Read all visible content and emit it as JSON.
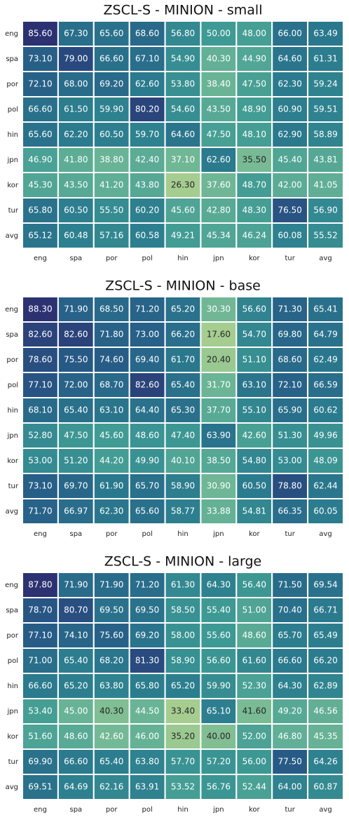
{
  "chart_data": [
    {
      "type": "heatmap",
      "title": "ZSCL-S - MINION - small",
      "xcategories": [
        "eng",
        "spa",
        "por",
        "pol",
        "hin",
        "jpn",
        "kor",
        "tur",
        "avg"
      ],
      "ycategories": [
        "eng",
        "spa",
        "por",
        "pol",
        "hin",
        "jpn",
        "kor",
        "tur",
        "avg"
      ],
      "colormap": [
        "#a5cd90",
        "#6bb596",
        "#3e9a94",
        "#2b7c8e",
        "#275d87",
        "#2c3172"
      ],
      "values": [
        [
          85.6,
          67.3,
          65.6,
          68.6,
          56.8,
          50.0,
          48.0,
          66.0,
          63.49
        ],
        [
          73.1,
          79.0,
          66.6,
          67.1,
          54.9,
          40.3,
          44.9,
          64.6,
          61.31
        ],
        [
          72.1,
          68.0,
          69.2,
          62.6,
          53.8,
          38.4,
          47.5,
          62.3,
          59.24
        ],
        [
          66.6,
          61.5,
          59.9,
          80.2,
          54.6,
          43.5,
          48.9,
          60.9,
          59.51
        ],
        [
          65.6,
          62.2,
          60.5,
          59.7,
          64.6,
          47.5,
          48.1,
          62.9,
          58.89
        ],
        [
          46.9,
          41.8,
          38.8,
          42.4,
          37.1,
          62.6,
          35.5,
          45.4,
          43.81
        ],
        [
          45.3,
          43.5,
          41.2,
          43.8,
          26.3,
          37.6,
          48.7,
          42.0,
          41.05
        ],
        [
          65.8,
          60.5,
          55.5,
          60.2,
          45.6,
          42.8,
          48.3,
          76.5,
          56.9
        ],
        [
          65.12,
          60.48,
          57.16,
          60.58,
          49.21,
          45.34,
          46.24,
          60.08,
          55.52
        ]
      ],
      "value_labels": [
        [
          "85.60",
          "67.30",
          "65.60",
          "68.60",
          "56.80",
          "50.00",
          "48.00",
          "66.00",
          "63.49"
        ],
        [
          "73.10",
          "79.00",
          "66.60",
          "67.10",
          "54.90",
          "40.30",
          "44.90",
          "64.60",
          "61.31"
        ],
        [
          "72.10",
          "68.00",
          "69.20",
          "62.60",
          "53.80",
          "38.40",
          "47.50",
          "62.30",
          "59.24"
        ],
        [
          "66.60",
          "61.50",
          "59.90",
          "80.20",
          "54.60",
          "43.50",
          "48.90",
          "60.90",
          "59.51"
        ],
        [
          "65.60",
          "62.20",
          "60.50",
          "59.70",
          "64.60",
          "47.50",
          "48.10",
          "62.90",
          "58.89"
        ],
        [
          "46.90",
          "41.80",
          "38.80",
          "42.40",
          "37.10",
          "62.60",
          "35.50",
          "45.40",
          "43.81"
        ],
        [
          "45.30",
          "43.50",
          "41.20",
          "43.80",
          "26.30",
          "37.60",
          "48.70",
          "42.00",
          "41.05"
        ],
        [
          "65.80",
          "60.50",
          "55.50",
          "60.20",
          "45.60",
          "42.80",
          "48.30",
          "76.50",
          "56.90"
        ],
        [
          "65.12",
          "60.48",
          "57.16",
          "60.58",
          "49.21",
          "45.34",
          "46.24",
          "60.08",
          "55.52"
        ]
      ]
    },
    {
      "type": "heatmap",
      "title": "ZSCL-S - MINION - base",
      "xcategories": [
        "eng",
        "spa",
        "por",
        "pol",
        "hin",
        "jpn",
        "kor",
        "tur",
        "avg"
      ],
      "ycategories": [
        "eng",
        "spa",
        "por",
        "pol",
        "hin",
        "jpn",
        "kor",
        "tur",
        "avg"
      ],
      "colormap": [
        "#a5cd90",
        "#6bb596",
        "#3e9a94",
        "#2b7c8e",
        "#275d87",
        "#2c3172"
      ],
      "values": [
        [
          88.3,
          71.9,
          68.5,
          71.2,
          65.2,
          30.3,
          56.6,
          71.3,
          65.41
        ],
        [
          82.6,
          82.6,
          71.8,
          73.0,
          66.2,
          17.6,
          54.7,
          69.8,
          64.79
        ],
        [
          78.6,
          75.5,
          74.6,
          69.4,
          61.7,
          20.4,
          51.1,
          68.6,
          62.49
        ],
        [
          77.1,
          72.0,
          68.7,
          82.6,
          65.4,
          31.7,
          63.1,
          72.1,
          66.59
        ],
        [
          68.1,
          65.4,
          63.1,
          64.4,
          65.3,
          37.7,
          55.1,
          65.9,
          60.62
        ],
        [
          52.8,
          47.5,
          45.6,
          48.6,
          47.4,
          63.9,
          42.6,
          51.3,
          49.96
        ],
        [
          53.0,
          51.2,
          44.2,
          49.9,
          40.1,
          38.5,
          54.8,
          53.0,
          48.09
        ],
        [
          73.1,
          69.7,
          61.9,
          65.7,
          58.9,
          30.9,
          60.5,
          78.8,
          62.44
        ],
        [
          71.7,
          66.97,
          62.3,
          65.6,
          58.77,
          33.88,
          54.81,
          66.35,
          60.05
        ]
      ],
      "value_labels": [
        [
          "88.30",
          "71.90",
          "68.50",
          "71.20",
          "65.20",
          "30.30",
          "56.60",
          "71.30",
          "65.41"
        ],
        [
          "82.60",
          "82.60",
          "71.80",
          "73.00",
          "66.20",
          "17.60",
          "54.70",
          "69.80",
          "64.79"
        ],
        [
          "78.60",
          "75.50",
          "74.60",
          "69.40",
          "61.70",
          "20.40",
          "51.10",
          "68.60",
          "62.49"
        ],
        [
          "77.10",
          "72.00",
          "68.70",
          "82.60",
          "65.40",
          "31.70",
          "63.10",
          "72.10",
          "66.59"
        ],
        [
          "68.10",
          "65.40",
          "63.10",
          "64.40",
          "65.30",
          "37.70",
          "55.10",
          "65.90",
          "60.62"
        ],
        [
          "52.80",
          "47.50",
          "45.60",
          "48.60",
          "47.40",
          "63.90",
          "42.60",
          "51.30",
          "49.96"
        ],
        [
          "53.00",
          "51.20",
          "44.20",
          "49.90",
          "40.10",
          "38.50",
          "54.80",
          "53.00",
          "48.09"
        ],
        [
          "73.10",
          "69.70",
          "61.90",
          "65.70",
          "58.90",
          "30.90",
          "60.50",
          "78.80",
          "62.44"
        ],
        [
          "71.70",
          "66.97",
          "62.30",
          "65.60",
          "58.77",
          "33.88",
          "54.81",
          "66.35",
          "60.05"
        ]
      ]
    },
    {
      "type": "heatmap",
      "title": "ZSCL-S - MINION - large",
      "xcategories": [
        "eng",
        "spa",
        "por",
        "pol",
        "hin",
        "jpn",
        "kor",
        "tur",
        "avg"
      ],
      "ycategories": [
        "eng",
        "spa",
        "por",
        "pol",
        "hin",
        "jpn",
        "kor",
        "tur",
        "avg"
      ],
      "colormap": [
        "#a5cd90",
        "#6bb596",
        "#3e9a94",
        "#2b7c8e",
        "#275d87",
        "#2c3172"
      ],
      "values": [
        [
          87.8,
          71.9,
          71.9,
          71.2,
          61.3,
          64.3,
          56.4,
          71.5,
          69.54
        ],
        [
          78.7,
          80.7,
          69.5,
          69.5,
          58.5,
          55.4,
          51.0,
          70.4,
          66.71
        ],
        [
          77.1,
          74.1,
          75.6,
          69.2,
          58.0,
          55.6,
          48.6,
          65.7,
          65.49
        ],
        [
          71.0,
          65.4,
          68.2,
          81.3,
          58.9,
          56.6,
          61.6,
          66.6,
          66.2
        ],
        [
          66.6,
          65.2,
          63.8,
          65.8,
          65.2,
          59.9,
          52.3,
          64.3,
          62.89
        ],
        [
          53.4,
          45.0,
          40.3,
          44.5,
          33.4,
          65.1,
          41.6,
          49.2,
          46.56
        ],
        [
          51.6,
          48.6,
          42.6,
          46.0,
          35.2,
          40.0,
          52.0,
          46.8,
          45.35
        ],
        [
          69.9,
          66.6,
          65.4,
          63.8,
          57.7,
          57.2,
          56.0,
          77.5,
          64.26
        ],
        [
          69.51,
          64.69,
          62.16,
          63.91,
          53.52,
          56.76,
          52.44,
          64.0,
          60.87
        ]
      ],
      "value_labels": [
        [
          "87.80",
          "71.90",
          "71.90",
          "71.20",
          "61.30",
          "64.30",
          "56.40",
          "71.50",
          "69.54"
        ],
        [
          "78.70",
          "80.70",
          "69.50",
          "69.50",
          "58.50",
          "55.40",
          "51.00",
          "70.40",
          "66.71"
        ],
        [
          "77.10",
          "74.10",
          "75.60",
          "69.20",
          "58.00",
          "55.60",
          "48.60",
          "65.70",
          "65.49"
        ],
        [
          "71.00",
          "65.40",
          "68.20",
          "81.30",
          "58.90",
          "56.60",
          "61.60",
          "66.60",
          "66.20"
        ],
        [
          "66.60",
          "65.20",
          "63.80",
          "65.80",
          "65.20",
          "59.90",
          "52.30",
          "64.30",
          "62.89"
        ],
        [
          "53.40",
          "45.00",
          "40.30",
          "44.50",
          "33.40",
          "65.10",
          "41.60",
          "49.20",
          "46.56"
        ],
        [
          "51.60",
          "48.60",
          "42.60",
          "46.00",
          "35.20",
          "40.00",
          "52.00",
          "46.80",
          "45.35"
        ],
        [
          "69.90",
          "66.60",
          "65.40",
          "63.80",
          "57.70",
          "57.20",
          "56.00",
          "77.50",
          "64.26"
        ],
        [
          "69.51",
          "64.69",
          "62.16",
          "63.91",
          "53.52",
          "56.76",
          "52.44",
          "64.00",
          "60.87"
        ]
      ]
    }
  ]
}
